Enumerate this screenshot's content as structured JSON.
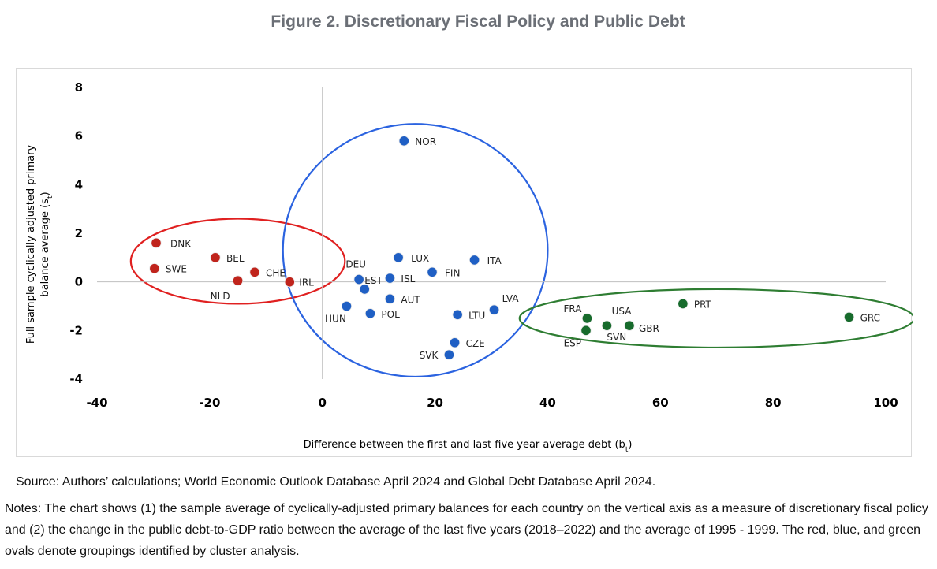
{
  "figure": {
    "title": "Figure 2. Discretionary Fiscal Policy and Public Debt",
    "source": "Source: Authors’ calculations; World Economic Outlook Database April 2024 and Global Debt Database April 2024.",
    "notes": "Notes: The chart shows (1) the sample average of cyclically-adjusted primary balances for each country on the vertical axis as a measure of discretionary fiscal policy and (2) the change in the public debt-to-GDP ratio between the average of the last five years (2018–2022) and the average of 1995 - 1999. The red, blue, and green ovals denote groupings identified by cluster analysis."
  },
  "colors": {
    "red": "#c0241c",
    "blue": "#1f5fc4",
    "green": "#176b2c",
    "ring_red": "#e02020",
    "ring_blue": "#2b63e0",
    "ring_green": "#2e7d32"
  },
  "chart_data": {
    "type": "scatter",
    "xlabel_main": "Difference between the first and last five year average debt (b",
    "xlabel_sub": "t",
    "xlabel_end": ")",
    "ylabel_line1": "Full sample cyclically adjusted primary",
    "ylabel_line2_main": "balance average (s",
    "ylabel_line2_sub": "t",
    "ylabel_line2_end": ")",
    "xlim": [
      -40,
      100
    ],
    "ylim": [
      -4,
      8
    ],
    "xticks": [
      "-40",
      "-20",
      "0",
      "20",
      "40",
      "60",
      "80",
      "100"
    ],
    "yticks": [
      "8",
      "6",
      "4",
      "2",
      "0",
      "-2",
      "-4"
    ],
    "grid": false,
    "series": [
      {
        "color": "red",
        "points": [
          {
            "label": "DNK",
            "x": -29.5,
            "y": 1.6
          },
          {
            "label": "SWE",
            "x": -29.8,
            "y": 0.55
          },
          {
            "label": "BEL",
            "x": -19.0,
            "y": 1.0
          },
          {
            "label": "NLD",
            "x": -15.0,
            "y": 0.05
          },
          {
            "label": "CHE",
            "x": -12.0,
            "y": 0.4
          },
          {
            "label": "IRL",
            "x": -5.8,
            "y": 0.0
          }
        ]
      },
      {
        "color": "blue",
        "points": [
          {
            "label": "NOR",
            "x": 14.5,
            "y": 5.8
          },
          {
            "label": "LUX",
            "x": 13.5,
            "y": 1.0
          },
          {
            "label": "ITA",
            "x": 27.0,
            "y": 0.9
          },
          {
            "label": "DEU",
            "x": 6.5,
            "y": 0.1
          },
          {
            "label": "ISL",
            "x": 12.0,
            "y": 0.15
          },
          {
            "label": "FIN",
            "x": 19.5,
            "y": 0.4
          },
          {
            "label": "EST",
            "x": 7.5,
            "y": -0.3
          },
          {
            "label": "AUT",
            "x": 12.0,
            "y": -0.7
          },
          {
            "label": "HUN",
            "x": 4.3,
            "y": -1.0
          },
          {
            "label": "POL",
            "x": 8.5,
            "y": -1.3
          },
          {
            "label": "LTU",
            "x": 24.0,
            "y": -1.35
          },
          {
            "label": "LVA",
            "x": 30.5,
            "y": -1.15
          },
          {
            "label": "CZE",
            "x": 23.5,
            "y": -2.5
          },
          {
            "label": "SVK",
            "x": 22.5,
            "y": -3.0
          }
        ]
      },
      {
        "color": "green",
        "points": [
          {
            "label": "PRT",
            "x": 64.0,
            "y": -0.9
          },
          {
            "label": "USA",
            "x": 54.5,
            "y": -1.8
          },
          {
            "label": "FRA",
            "x": 47.0,
            "y": -1.5
          },
          {
            "label": "ESP",
            "x": 46.8,
            "y": -2.0
          },
          {
            "label": "SVN",
            "x": 50.5,
            "y": -1.8
          },
          {
            "label": "GBR",
            "x": 54.5,
            "y": -1.8
          },
          {
            "label": "GRC",
            "x": 93.5,
            "y": -1.45
          }
        ]
      }
    ],
    "clusters": [
      {
        "color": "ring_red",
        "cx": -15.0,
        "cy": 0.85,
        "rx": 19.0,
        "ry": 1.75
      },
      {
        "color": "ring_blue",
        "cx": 16.5,
        "cy": 1.3,
        "rx": 23.5,
        "ry": 5.2
      },
      {
        "color": "ring_green",
        "cx": 70.0,
        "cy": -1.5,
        "rx": 35.0,
        "ry": 1.2
      }
    ]
  }
}
